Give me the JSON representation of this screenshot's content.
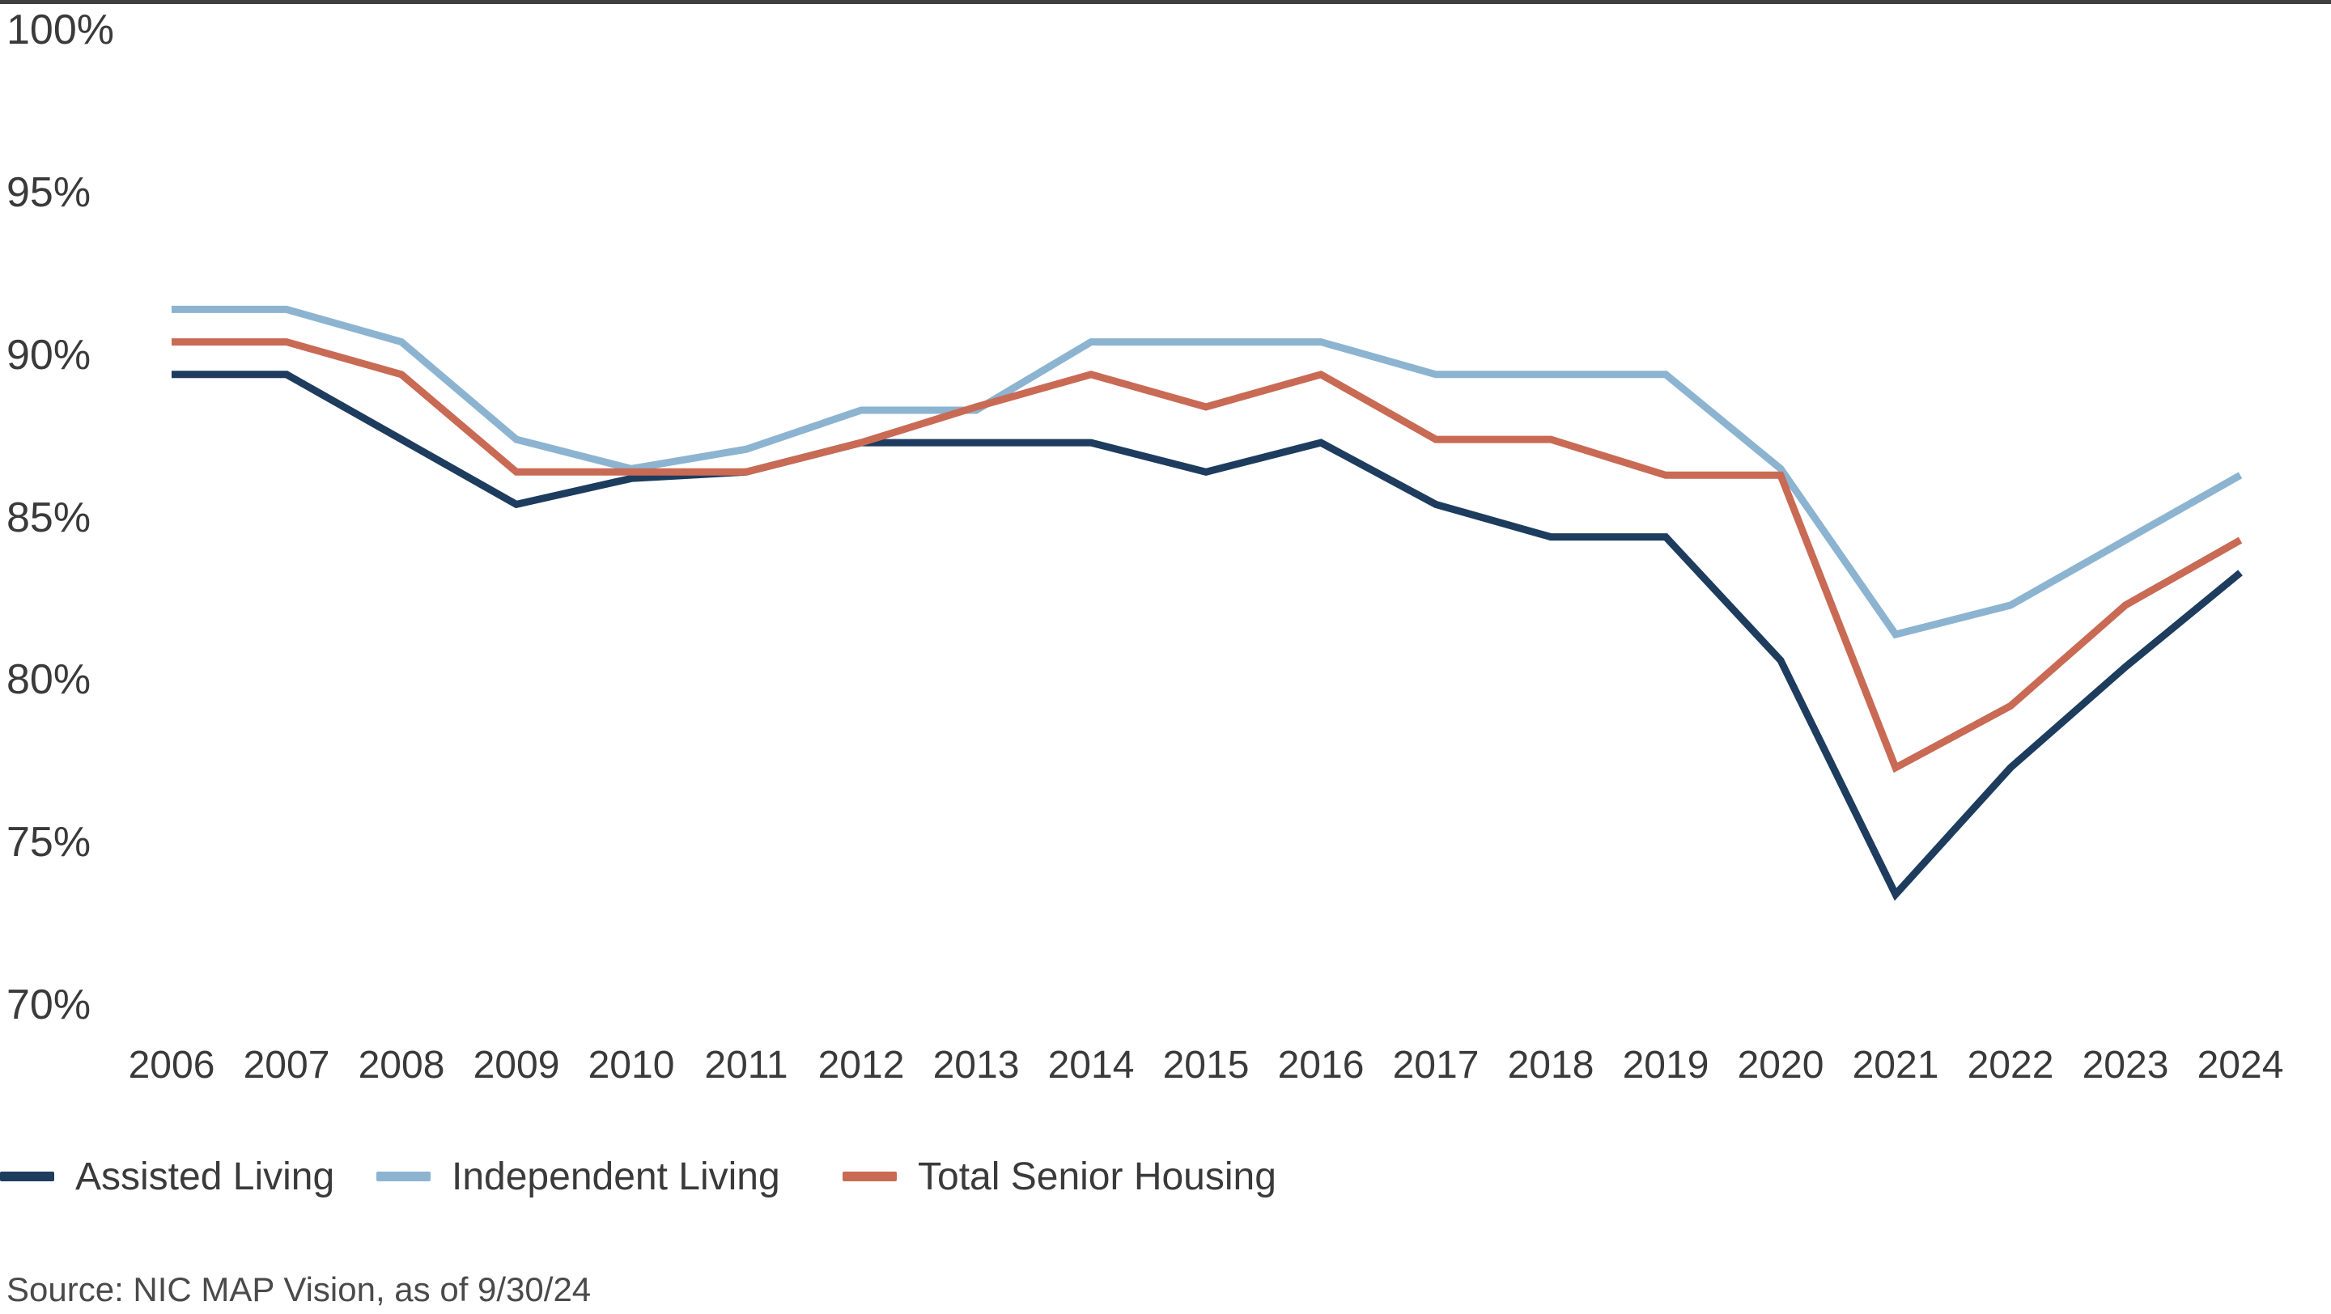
{
  "chart_data": {
    "type": "line",
    "title": "",
    "xlabel": "",
    "ylabel": "",
    "x": [
      2006,
      2007,
      2008,
      2009,
      2010,
      2011,
      2012,
      2013,
      2014,
      2015,
      2016,
      2017,
      2018,
      2019,
      2020,
      2021,
      2022,
      2023,
      2024
    ],
    "series": [
      {
        "name": "Assisted Living",
        "color": "#1d3c5e",
        "values": [
          89.4,
          89.4,
          87.4,
          85.4,
          86.2,
          86.4,
          87.3,
          87.3,
          87.3,
          86.4,
          87.3,
          85.4,
          84.4,
          84.4,
          80.6,
          73.4,
          77.3,
          80.4,
          83.3
        ]
      },
      {
        "name": "Independent Living",
        "color": "#8cb4d1",
        "values": [
          91.4,
          91.4,
          90.4,
          87.4,
          86.5,
          87.1,
          88.3,
          88.3,
          90.4,
          90.4,
          90.4,
          89.4,
          89.4,
          89.4,
          86.5,
          81.4,
          82.3,
          84.3,
          86.3
        ]
      },
      {
        "name": "Total Senior Housing",
        "color": "#c96a55",
        "values": [
          90.4,
          90.4,
          89.4,
          86.4,
          86.4,
          86.4,
          87.3,
          88.4,
          89.4,
          88.4,
          89.4,
          87.4,
          87.4,
          86.3,
          86.3,
          77.3,
          79.2,
          82.3,
          84.3
        ]
      }
    ],
    "ylim": [
      70,
      100
    ],
    "ytick_values": [
      100,
      95,
      90,
      85,
      80,
      75,
      70
    ],
    "ytick_labels": [
      "100%",
      "95%",
      "90%",
      "85%",
      "80%",
      "75%",
      "70%"
    ],
    "grid": false,
    "legend_position": "bottom-left",
    "line_width": 9
  },
  "legend": {
    "items": [
      "Assisted Living",
      "Independent Living",
      "Total Senior Housing"
    ]
  },
  "source": {
    "text": "Source: NIC MAP Vision, as of 9/30/24"
  },
  "accents": {
    "top_rule_color": "#3f3f3f",
    "axis_text_color": "#3a3a3a",
    "source_text_color": "#4a4a4a",
    "background": "#ffffff"
  }
}
